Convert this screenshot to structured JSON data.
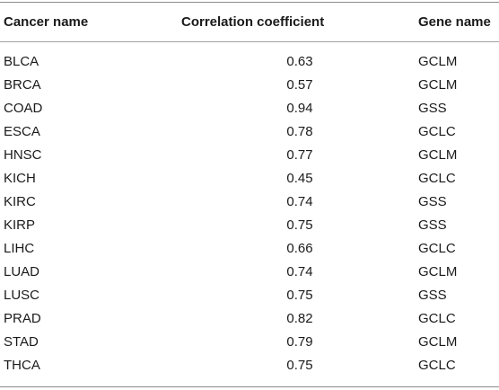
{
  "table": {
    "headers": {
      "cancer_name": "Cancer name",
      "correlation": "Correlation coefficient",
      "gene_name": "Gene name"
    },
    "rows": [
      {
        "cancer": "BLCA",
        "corr": "0.63",
        "gene": "GCLM"
      },
      {
        "cancer": "BRCA",
        "corr": "0.57",
        "gene": "GCLM"
      },
      {
        "cancer": "COAD",
        "corr": "0.94",
        "gene": "GSS"
      },
      {
        "cancer": "ESCA",
        "corr": "0.78",
        "gene": "GCLC"
      },
      {
        "cancer": "HNSC",
        "corr": "0.77",
        "gene": "GCLM"
      },
      {
        "cancer": "KICH",
        "corr": "0.45",
        "gene": "GCLC"
      },
      {
        "cancer": "KIRC",
        "corr": "0.74",
        "gene": "GSS"
      },
      {
        "cancer": "KIRP",
        "corr": "0.75",
        "gene": "GSS"
      },
      {
        "cancer": "LIHC",
        "corr": "0.66",
        "gene": "GCLC"
      },
      {
        "cancer": "LUAD",
        "corr": "0.74",
        "gene": "GCLM"
      },
      {
        "cancer": "LUSC",
        "corr": "0.75",
        "gene": "GSS"
      },
      {
        "cancer": "PRAD",
        "corr": "0.82",
        "gene": "GCLC"
      },
      {
        "cancer": "STAD",
        "corr": "0.79",
        "gene": "GCLM"
      },
      {
        "cancer": "THCA",
        "corr": "0.75",
        "gene": "GCLC"
      }
    ]
  }
}
